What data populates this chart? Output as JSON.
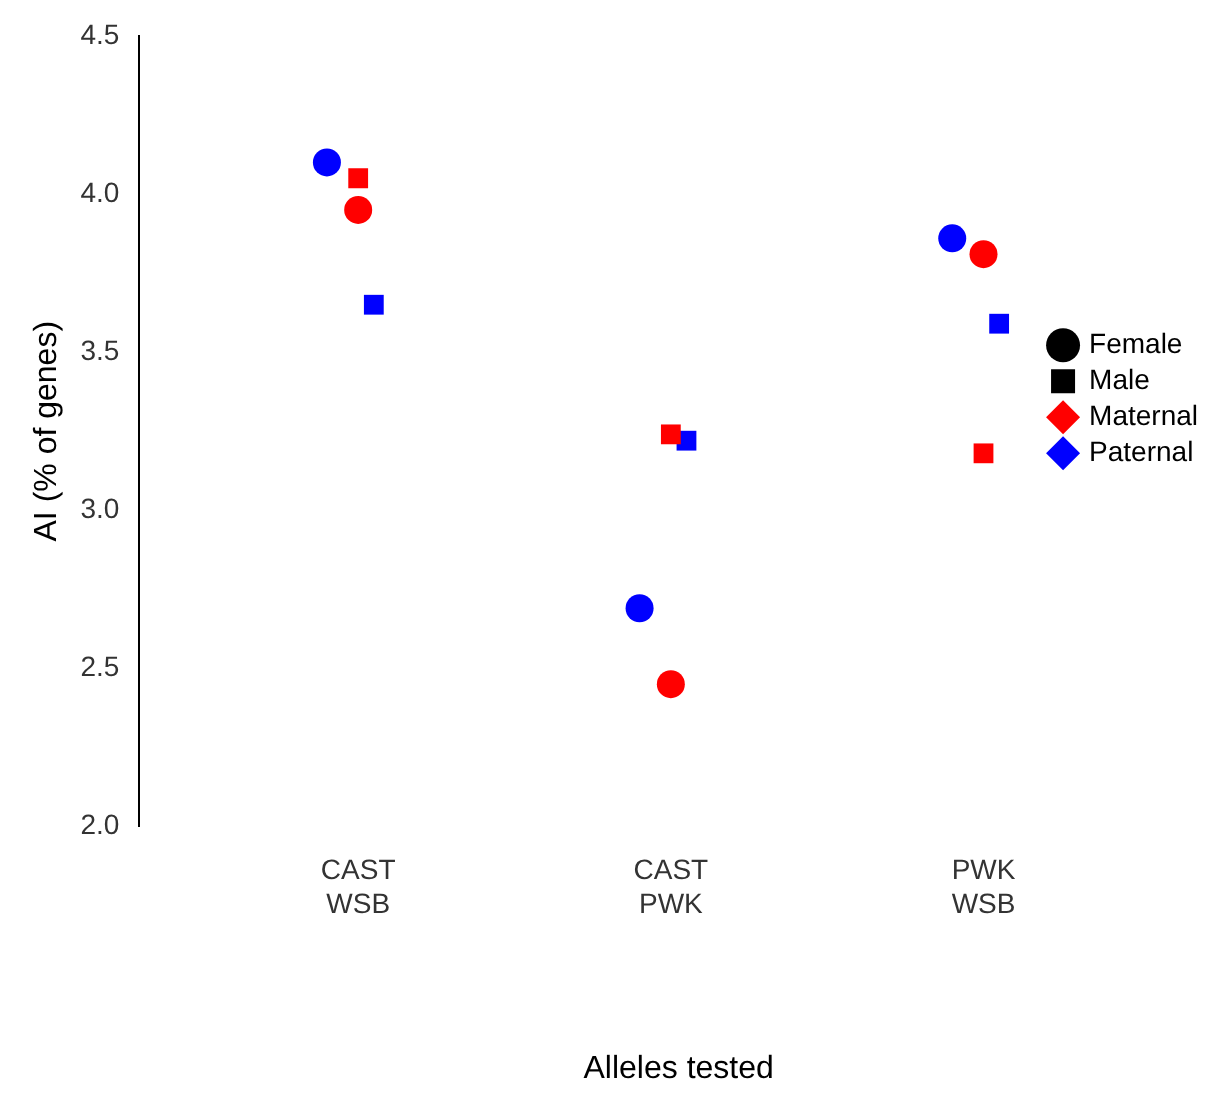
{
  "chart_data": {
    "type": "scatter",
    "xlabel": "Alleles tested",
    "ylabel": "AI (% of genes)",
    "categories": [
      "CAST\nWSB",
      "CAST\nPWK",
      "PWK\nWSB"
    ],
    "ylim": [
      2.0,
      4.5
    ],
    "yticks": [
      {
        "value": 2,
        "label": "2.0"
      },
      {
        "value": 2.5,
        "label": "2.5"
      },
      {
        "value": 3,
        "label": "3.0"
      },
      {
        "value": 3.5,
        "label": "3.5"
      },
      {
        "value": 4,
        "label": "4.0"
      },
      {
        "value": 4.5,
        "label": "4.5"
      }
    ],
    "grid": false,
    "legend": "top right",
    "series": [
      {
        "color": "#ff0000",
        "marker": "circle",
        "values": [
          3.95,
          2.45,
          3.81
        ]
      },
      {
        "color": "#0000ff",
        "marker": "circle",
        "values": [
          4.1,
          2.69,
          3.86
        ]
      },
      {
        "color": "#ff0000",
        "marker": "square",
        "values": [
          4.05,
          3.24,
          3.18
        ]
      },
      {
        "color": "#0000ff",
        "marker": "square",
        "values": [
          3.65,
          3.22,
          3.59
        ]
      },
      {
        "name": "Female",
        "color": "#000000",
        "marker": "circle",
        "values": [
          null,
          null,
          null
        ]
      },
      {
        "name": "Male",
        "color": "#000000",
        "marker": "square",
        "values": [
          null,
          null,
          null
        ]
      },
      {
        "name": "Maternal",
        "color": "#ff0000",
        "marker": "diamond",
        "values": [
          null,
          null,
          null
        ]
      },
      {
        "name": "Paternal",
        "color": "#0000ff",
        "marker": "diamond",
        "values": [
          null,
          null,
          null
        ]
      }
    ]
  }
}
